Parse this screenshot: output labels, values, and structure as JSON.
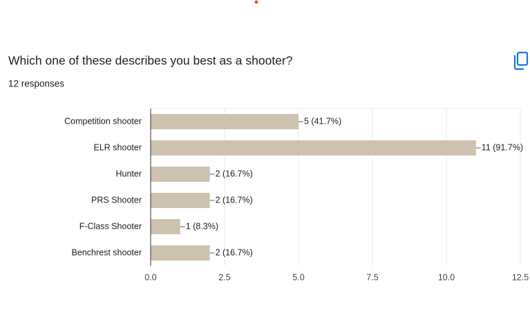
{
  "chart_data": {
    "type": "bar",
    "orientation": "horizontal",
    "title": "Which one of these describes you best as a shooter?",
    "subtitle": "12 responses",
    "categories": [
      "Competition shooter",
      "ELR shooter",
      "Hunter",
      "PRS Shooter",
      "F-Class Shooter",
      "Benchrest shooter"
    ],
    "values": [
      5,
      11,
      2,
      2,
      1,
      2
    ],
    "value_labels": [
      "5 (41.7%)",
      "11 (91.7%)",
      "2 (16.7%)",
      "2 (16.7%)",
      "1 (8.3%)",
      "2 (16.7%)"
    ],
    "color": "#cdc2b0",
    "xlim": [
      0,
      12.5
    ],
    "xticks": [
      {
        "value": 0,
        "label": "0.0"
      },
      2.5,
      {
        "value": 5,
        "label": "5.0"
      },
      7.5,
      {
        "value": 10,
        "label": "10.0"
      },
      12.5
    ],
    "grid": true
  }
}
